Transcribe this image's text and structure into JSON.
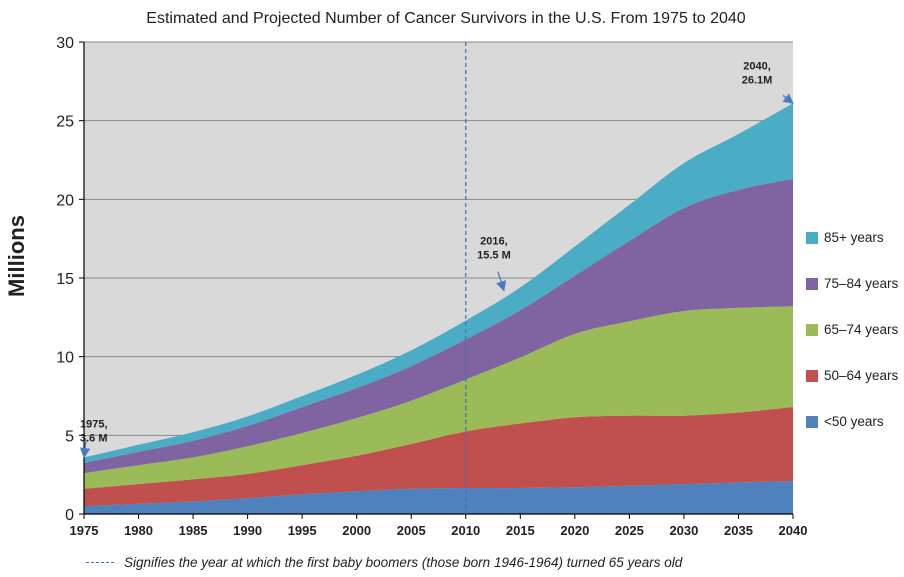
{
  "chart_data": {
    "type": "area",
    "stacked": true,
    "title": "Estimated and Projected Number of Cancer Survivors in the U.S. From 1975 to 2040",
    "xlabel": "",
    "ylabel": "Millions",
    "xlim": [
      1975,
      2040
    ],
    "ylim": [
      0,
      30
    ],
    "x_ticks": [
      1975,
      1980,
      1985,
      1990,
      1995,
      2000,
      2005,
      2010,
      2015,
      2020,
      2025,
      2030,
      2035,
      2040
    ],
    "y_ticks": [
      0,
      5,
      10,
      15,
      20,
      25,
      30
    ],
    "grid": "horizontal",
    "legend_position": "right",
    "x": [
      1975,
      1980,
      1985,
      1990,
      1995,
      2000,
      2005,
      2010,
      2015,
      2020,
      2025,
      2030,
      2035,
      2040
    ],
    "series": [
      {
        "name": "<50 years",
        "color": "#4f81bd",
        "values": [
          0.5,
          0.65,
          0.8,
          1.0,
          1.25,
          1.45,
          1.6,
          1.65,
          1.65,
          1.7,
          1.8,
          1.9,
          2.0,
          2.1
        ]
      },
      {
        "name": "50–64 years",
        "color": "#c0504d",
        "values": [
          1.1,
          1.25,
          1.4,
          1.55,
          1.85,
          2.25,
          2.85,
          3.6,
          4.1,
          4.45,
          4.45,
          4.35,
          4.45,
          4.7
        ]
      },
      {
        "name": "65–74 years",
        "color": "#9bbb59",
        "values": [
          1.0,
          1.2,
          1.4,
          1.75,
          2.05,
          2.4,
          2.75,
          3.3,
          4.2,
          5.3,
          6.0,
          6.65,
          6.65,
          6.4
        ]
      },
      {
        "name": "75–84 years",
        "color": "#8064a2",
        "values": [
          0.65,
          0.85,
          1.05,
          1.3,
          1.65,
          1.9,
          2.2,
          2.55,
          3.0,
          3.7,
          5.1,
          6.55,
          7.5,
          8.1
        ]
      },
      {
        "name": "85+ years",
        "color": "#4bacc6",
        "values": [
          0.35,
          0.45,
          0.55,
          0.6,
          0.7,
          0.85,
          1.0,
          1.2,
          1.45,
          1.85,
          2.3,
          2.85,
          3.55,
          4.8
        ]
      }
    ],
    "reference_line": {
      "x": 2010
    },
    "annotations": [
      {
        "x": 1975,
        "y": 3.6,
        "lines": [
          "1975,",
          "3.6 M"
        ]
      },
      {
        "x": 2013.5,
        "y": 14.2,
        "lines": [
          "2016,",
          "15.5 M"
        ]
      },
      {
        "x": 2040,
        "y": 26.1,
        "lines": [
          "2040,",
          "26.1M"
        ]
      }
    ],
    "footnote": "Signifies the year at which the first baby boomers (those born 1946-1964) turned 65 years old"
  },
  "colors": {
    "plot_background": "#d9d9d9",
    "gridline": "#8a8a8a",
    "reference_line": "#3f6fb0",
    "arrow": "#4a7cc2",
    "text": "#222222"
  }
}
